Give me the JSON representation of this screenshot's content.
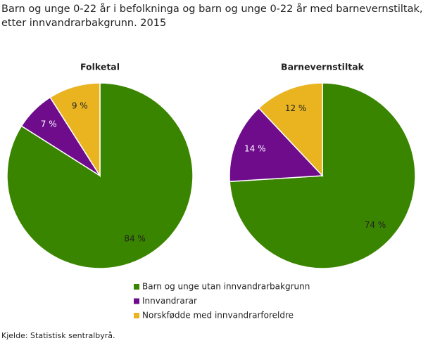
{
  "title": [
    "Barn og unge 0-22 år i befolkninga og barn og unge 0-22 år med barnevernstiltak,",
    "etter innvandrarbakgrunn. 2015"
  ],
  "legend": {
    "categories": [
      "Barn og unge utan innvandrarbakgrunn",
      "Innvandrarar",
      "Norskfødde med innvandrarforeldre"
    ],
    "colors": [
      "#3a8500",
      "#6e0c8c",
      "#e9b420"
    ]
  },
  "chart_data": [
    {
      "type": "pie",
      "title": "Folketal",
      "values": [
        84,
        7,
        9
      ],
      "value_labels": [
        "84 %",
        "7 %",
        "9 %"
      ]
    },
    {
      "type": "pie",
      "title": "Barnevernstiltak",
      "values": [
        74,
        14,
        12
      ],
      "value_labels": [
        "74 %",
        "14 %",
        "12 %"
      ]
    }
  ],
  "source": "Kjelde: Statistisk sentralbyrå."
}
